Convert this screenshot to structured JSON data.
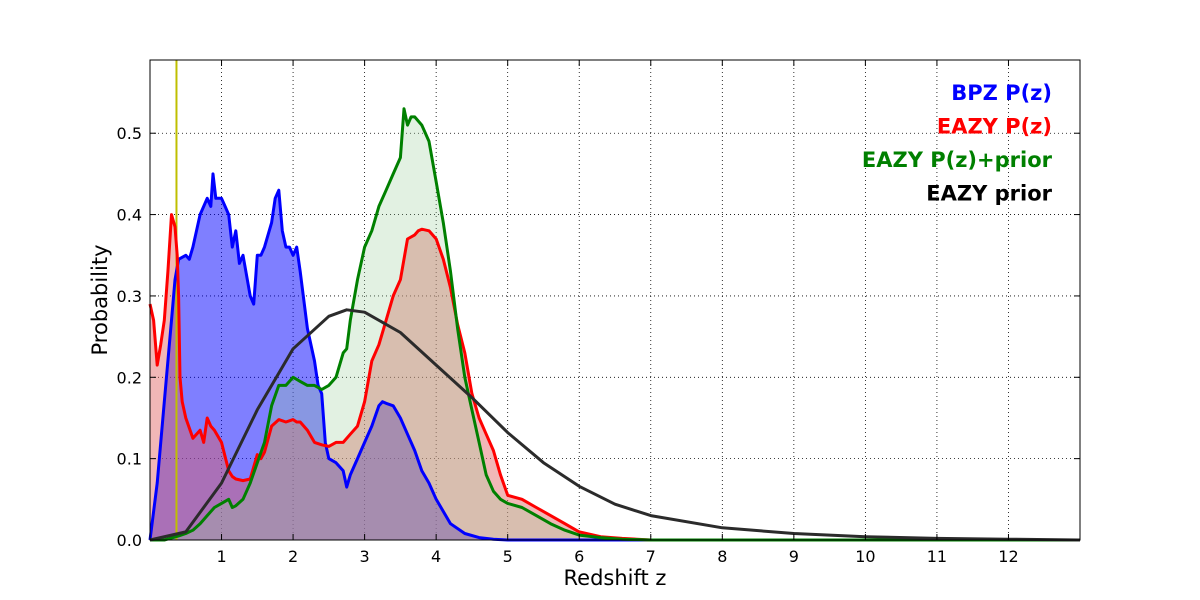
{
  "chart_data": {
    "type": "area",
    "title": "",
    "xlabel": "Redshift z",
    "ylabel": "Probability",
    "xlim": [
      0,
      13
    ],
    "ylim": [
      0,
      0.59
    ],
    "grid": true,
    "legend_position": "top-right",
    "xticks": [
      1,
      2,
      3,
      4,
      5,
      6,
      7,
      8,
      9,
      10,
      11,
      12
    ],
    "xtick_labels": [
      "1",
      "2",
      "3",
      "4",
      "5",
      "6",
      "7",
      "8",
      "9",
      "10",
      "11",
      "12"
    ],
    "yticks": [
      0.0,
      0.1,
      0.2,
      0.3,
      0.4,
      0.5
    ],
    "ytick_labels": [
      "0.0",
      "0.1",
      "0.2",
      "0.3",
      "0.4",
      "0.5"
    ],
    "vertical_line": {
      "x": 0.37,
      "color": "#bfbf00"
    },
    "series": [
      {
        "name": "BPZ P(z)",
        "color": "#0000ff",
        "fill": "#0000ff",
        "fill_opacity": 0.5,
        "x": [
          0,
          0.1,
          0.2,
          0.3,
          0.35,
          0.4,
          0.5,
          0.55,
          0.6,
          0.7,
          0.75,
          0.8,
          0.85,
          0.88,
          0.92,
          1.0,
          1.05,
          1.1,
          1.15,
          1.2,
          1.25,
          1.3,
          1.4,
          1.45,
          1.5,
          1.55,
          1.6,
          1.7,
          1.75,
          1.8,
          1.85,
          1.9,
          1.95,
          2.0,
          2.05,
          2.1,
          2.2,
          2.3,
          2.35,
          2.4,
          2.45,
          2.5,
          2.6,
          2.7,
          2.75,
          2.8,
          2.9,
          3.0,
          3.1,
          3.2,
          3.25,
          3.3,
          3.4,
          3.5,
          3.6,
          3.7,
          3.8,
          3.9,
          4.0,
          4.2,
          4.4,
          4.6,
          4.8,
          5.0,
          5.3,
          5.6,
          6.0,
          13
        ],
        "y": [
          0.0,
          0.07,
          0.17,
          0.27,
          0.32,
          0.345,
          0.35,
          0.345,
          0.36,
          0.4,
          0.41,
          0.42,
          0.41,
          0.45,
          0.42,
          0.42,
          0.41,
          0.4,
          0.36,
          0.38,
          0.34,
          0.35,
          0.3,
          0.29,
          0.35,
          0.35,
          0.36,
          0.39,
          0.42,
          0.43,
          0.38,
          0.36,
          0.36,
          0.35,
          0.36,
          0.33,
          0.26,
          0.22,
          0.19,
          0.18,
          0.12,
          0.1,
          0.095,
          0.085,
          0.065,
          0.08,
          0.1,
          0.12,
          0.14,
          0.165,
          0.17,
          0.168,
          0.165,
          0.15,
          0.13,
          0.11,
          0.085,
          0.07,
          0.05,
          0.02,
          0.008,
          0.003,
          0.001,
          0.0,
          0.0,
          0.0,
          0.0,
          0.0
        ]
      },
      {
        "name": "EAZY P(z)",
        "color": "#ff0000",
        "fill": "#e06060",
        "fill_opacity": 0.45,
        "x": [
          0,
          0.05,
          0.1,
          0.15,
          0.2,
          0.25,
          0.3,
          0.35,
          0.38,
          0.4,
          0.42,
          0.45,
          0.5,
          0.6,
          0.7,
          0.75,
          0.8,
          0.85,
          0.9,
          1.0,
          1.1,
          1.15,
          1.2,
          1.3,
          1.4,
          1.5,
          1.55,
          1.6,
          1.7,
          1.8,
          1.9,
          2.0,
          2.05,
          2.1,
          2.2,
          2.3,
          2.4,
          2.5,
          2.6,
          2.7,
          2.8,
          2.9,
          3.0,
          3.1,
          3.2,
          3.3,
          3.4,
          3.5,
          3.6,
          3.7,
          3.75,
          3.8,
          3.9,
          4.0,
          4.1,
          4.2,
          4.3,
          4.4,
          4.5,
          4.6,
          4.7,
          4.8,
          4.9,
          5.0,
          5.2,
          5.4,
          5.6,
          5.8,
          6.0,
          6.3,
          6.6,
          7.0,
          13
        ],
        "y": [
          0.29,
          0.27,
          0.215,
          0.24,
          0.27,
          0.33,
          0.4,
          0.385,
          0.35,
          0.3,
          0.2,
          0.17,
          0.15,
          0.125,
          0.135,
          0.12,
          0.15,
          0.14,
          0.135,
          0.12,
          0.085,
          0.078,
          0.075,
          0.073,
          0.075,
          0.105,
          0.1,
          0.108,
          0.14,
          0.148,
          0.145,
          0.148,
          0.145,
          0.145,
          0.135,
          0.12,
          0.117,
          0.115,
          0.12,
          0.12,
          0.13,
          0.14,
          0.17,
          0.22,
          0.24,
          0.27,
          0.3,
          0.32,
          0.37,
          0.375,
          0.38,
          0.382,
          0.38,
          0.37,
          0.345,
          0.31,
          0.265,
          0.23,
          0.18,
          0.15,
          0.13,
          0.11,
          0.08,
          0.055,
          0.05,
          0.04,
          0.03,
          0.02,
          0.01,
          0.004,
          0.002,
          0.0,
          0.0
        ]
      },
      {
        "name": "EAZY P(z)+prior",
        "color": "#008000",
        "fill": "#a0d0a0",
        "fill_opacity": 0.3,
        "x": [
          0,
          0.2,
          0.4,
          0.5,
          0.6,
          0.7,
          0.8,
          0.9,
          1.0,
          1.1,
          1.15,
          1.2,
          1.3,
          1.4,
          1.5,
          1.6,
          1.7,
          1.8,
          1.9,
          2.0,
          2.1,
          2.2,
          2.3,
          2.4,
          2.5,
          2.6,
          2.7,
          2.75,
          2.8,
          2.9,
          3.0,
          3.1,
          3.2,
          3.3,
          3.4,
          3.5,
          3.55,
          3.6,
          3.65,
          3.7,
          3.8,
          3.9,
          4.0,
          4.1,
          4.2,
          4.3,
          4.4,
          4.5,
          4.6,
          4.7,
          4.8,
          4.9,
          5.0,
          5.2,
          5.4,
          5.6,
          5.8,
          6.0,
          6.3,
          6.6,
          7.0,
          13
        ],
        "y": [
          0.0,
          0.0,
          0.005,
          0.008,
          0.012,
          0.02,
          0.03,
          0.04,
          0.045,
          0.05,
          0.04,
          0.042,
          0.05,
          0.07,
          0.095,
          0.12,
          0.165,
          0.19,
          0.19,
          0.2,
          0.195,
          0.19,
          0.19,
          0.185,
          0.19,
          0.2,
          0.23,
          0.235,
          0.27,
          0.32,
          0.36,
          0.38,
          0.41,
          0.43,
          0.45,
          0.47,
          0.53,
          0.51,
          0.52,
          0.52,
          0.51,
          0.49,
          0.44,
          0.39,
          0.33,
          0.26,
          0.2,
          0.16,
          0.12,
          0.08,
          0.06,
          0.05,
          0.045,
          0.04,
          0.03,
          0.02,
          0.012,
          0.006,
          0.003,
          0.001,
          0.0,
          0.0
        ]
      },
      {
        "name": "EAZY prior",
        "color": "#2b2b2b",
        "fill": "none",
        "fill_opacity": 0,
        "x": [
          0,
          0.5,
          1.0,
          1.5,
          2.0,
          2.5,
          2.75,
          3.0,
          3.5,
          4.0,
          4.5,
          5.0,
          5.5,
          6.0,
          6.5,
          7.0,
          8.0,
          9.0,
          10.0,
          11.0,
          12.0,
          13.0
        ],
        "y": [
          0.0,
          0.01,
          0.07,
          0.16,
          0.235,
          0.275,
          0.283,
          0.28,
          0.255,
          0.215,
          0.175,
          0.132,
          0.095,
          0.066,
          0.044,
          0.03,
          0.015,
          0.008,
          0.004,
          0.002,
          0.001,
          0.0
        ]
      }
    ]
  }
}
